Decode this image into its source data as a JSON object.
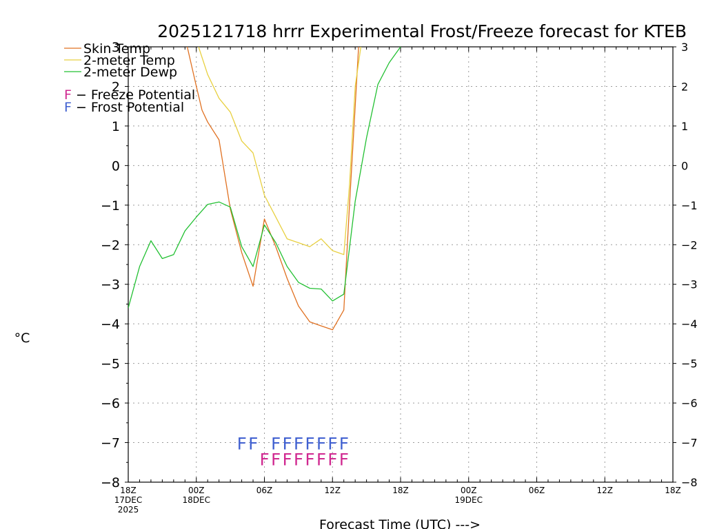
{
  "chart_data": {
    "type": "line",
    "title": "2025121718 hrrr Experimental Frost/Freeze forecast for KTEB",
    "ylabel": "°C",
    "xlabel": "Forecast Time (UTC) --->",
    "ylim": [
      -8,
      3
    ],
    "xlim": [
      0,
      48
    ],
    "yticks": [
      3,
      2,
      1,
      0,
      -1,
      -2,
      -3,
      -4,
      -5,
      -6,
      -7,
      -8
    ],
    "yticklabels": [
      "3",
      "2",
      "1",
      "0",
      "−1",
      "−2",
      "−3",
      "−4",
      "−5",
      "−6",
      "−7",
      "−8"
    ],
    "xticks": [
      {
        "hour": 0,
        "lines": [
          "18Z",
          "17DEC",
          "2025"
        ]
      },
      {
        "hour": 6,
        "lines": [
          "00Z",
          "18DEC"
        ]
      },
      {
        "hour": 12,
        "lines": [
          "06Z"
        ]
      },
      {
        "hour": 18,
        "lines": [
          "12Z"
        ]
      },
      {
        "hour": 24,
        "lines": [
          "18Z"
        ]
      },
      {
        "hour": 30,
        "lines": [
          "00Z",
          "19DEC"
        ]
      },
      {
        "hour": 36,
        "lines": [
          "06Z"
        ]
      },
      {
        "hour": 42,
        "lines": [
          "12Z"
        ]
      },
      {
        "hour": 48,
        "lines": [
          "18Z"
        ]
      }
    ],
    "grid": true,
    "legend_placement": "top-left",
    "series": [
      {
        "name": "Skin Temp",
        "color": "#e07020",
        "points": [
          [
            5.2,
            3.0
          ],
          [
            6,
            2.0
          ],
          [
            6.5,
            1.4
          ],
          [
            7,
            1.1
          ],
          [
            8,
            0.65
          ],
          [
            9,
            -1.1
          ],
          [
            10,
            -2.2
          ],
          [
            11,
            -3.05
          ],
          [
            12,
            -1.35
          ],
          [
            13,
            -2.05
          ],
          [
            14,
            -2.85
          ],
          [
            15,
            -3.55
          ],
          [
            16,
            -3.95
          ],
          [
            17,
            -4.05
          ],
          [
            18,
            -4.15
          ],
          [
            19,
            -3.65
          ],
          [
            19.5,
            -1.0
          ],
          [
            20,
            1.5
          ],
          [
            20.3,
            3.0
          ]
        ]
      },
      {
        "name": "2-meter Temp",
        "color": "#e8d040",
        "points": [
          [
            6.2,
            3.0
          ],
          [
            7,
            2.3
          ],
          [
            8,
            1.7
          ],
          [
            9,
            1.35
          ],
          [
            10,
            0.62
          ],
          [
            11,
            0.32
          ],
          [
            12,
            -0.75
          ],
          [
            13,
            -1.3
          ],
          [
            14,
            -1.85
          ],
          [
            15,
            -1.95
          ],
          [
            16,
            -2.05
          ],
          [
            17,
            -1.85
          ],
          [
            18,
            -2.15
          ],
          [
            19,
            -2.25
          ],
          [
            19.5,
            -0.5
          ],
          [
            20,
            2.0
          ],
          [
            20.5,
            3.0
          ]
        ]
      },
      {
        "name": "2-meter Dewp",
        "color": "#22c032",
        "points": [
          [
            0,
            -3.6
          ],
          [
            1,
            -2.55
          ],
          [
            2,
            -1.9
          ],
          [
            3,
            -2.35
          ],
          [
            4,
            -2.25
          ],
          [
            5,
            -1.65
          ],
          [
            6,
            -1.3
          ],
          [
            7,
            -0.98
          ],
          [
            8,
            -0.92
          ],
          [
            9,
            -1.05
          ],
          [
            10,
            -2.05
          ],
          [
            11,
            -2.55
          ],
          [
            12,
            -1.5
          ],
          [
            13,
            -1.95
          ],
          [
            14,
            -2.55
          ],
          [
            15,
            -2.95
          ],
          [
            16,
            -3.1
          ],
          [
            17,
            -3.12
          ],
          [
            18,
            -3.42
          ],
          [
            19,
            -3.25
          ],
          [
            20,
            -0.9
          ],
          [
            21,
            0.7
          ],
          [
            22,
            2.05
          ],
          [
            23,
            2.6
          ],
          [
            24,
            3.0
          ]
        ]
      }
    ],
    "frost_potential": {
      "label": "F − Frost Potential",
      "color": "#4060d0",
      "hours": [
        10,
        11,
        13,
        14,
        15,
        16,
        17,
        18,
        19
      ]
    },
    "freeze_potential": {
      "label": "F − Freeze Potential",
      "color": "#d02890",
      "hours": [
        12,
        13,
        14,
        15,
        16,
        17,
        18,
        19
      ]
    },
    "flag_char": "F"
  }
}
